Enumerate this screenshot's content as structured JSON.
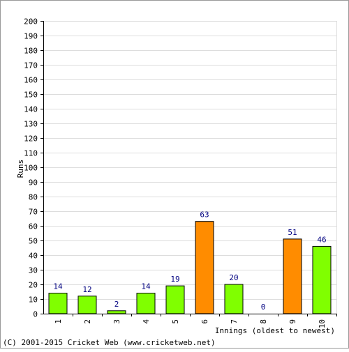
{
  "chart_data": {
    "type": "bar",
    "categories": [
      "1",
      "2",
      "3",
      "4",
      "5",
      "6",
      "7",
      "8",
      "9",
      "10"
    ],
    "values": [
      14,
      12,
      2,
      14,
      19,
      63,
      20,
      0,
      51,
      46
    ],
    "not_out": [
      false,
      false,
      false,
      false,
      false,
      true,
      false,
      false,
      true,
      false
    ],
    "data_labels": [
      "14",
      "12",
      "2",
      "14",
      "19",
      "63",
      "20",
      "0",
      "51",
      "46"
    ],
    "ylabel": "Runs",
    "xlabel": "Innings (oldest to newest)",
    "ylim": [
      0,
      200
    ],
    "yticks": [
      "0",
      "10",
      "20",
      "30",
      "40",
      "50",
      "60",
      "70",
      "80",
      "90",
      "100",
      "110",
      "120",
      "130",
      "140",
      "150",
      "160",
      "170",
      "180",
      "190",
      "200"
    ],
    "grid": true,
    "colors": {
      "out": "#80ff00",
      "not_out": "#ff8c00",
      "bar_stroke": "#000000",
      "grid": "#dddddd",
      "label": "#000080",
      "axis": "#000000"
    }
  },
  "footer": {
    "copyright": "(C) 2001-2015 Cricket Web (www.cricketweb.net)"
  }
}
